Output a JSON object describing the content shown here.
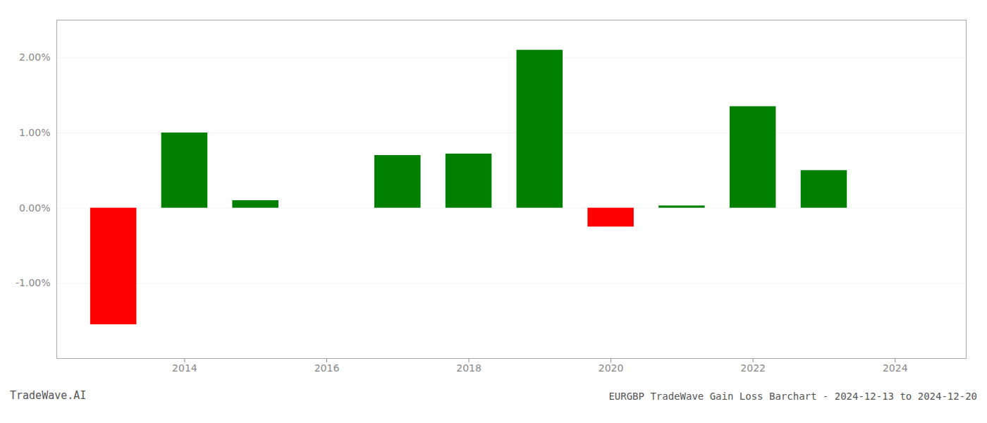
{
  "chart_data": {
    "type": "bar",
    "title": "EURGBP TradeWave Gain Loss Barchart - 2024-12-13 to 2024-12-20",
    "annotations": [
      "TradeWave.AI"
    ],
    "x": [
      2013,
      2014,
      2015,
      2017,
      2018,
      2019,
      2020,
      2021,
      2022,
      2023
    ],
    "values": [
      -1.55,
      1.0,
      0.1,
      0.7,
      0.72,
      2.1,
      -0.25,
      0.03,
      1.35,
      0.5
    ],
    "colors": [
      "#ff0000",
      "#008000",
      "#008000",
      "#008000",
      "#008000",
      "#008000",
      "#ff0000",
      "#008000",
      "#008000",
      "#008000"
    ],
    "xlim": [
      2012.2,
      2025.0
    ],
    "xticks": [
      2014,
      2016,
      2018,
      2020,
      2022,
      2024
    ],
    "ylim": [
      -2.0,
      2.5
    ],
    "yticks": [
      {
        "value": -1.0,
        "label": "-1.00%"
      },
      {
        "value": 0.0,
        "label": "0.00%"
      },
      {
        "value": 1.0,
        "label": "1.00%"
      },
      {
        "value": 2.0,
        "label": "2.00%"
      }
    ],
    "grid": true
  }
}
